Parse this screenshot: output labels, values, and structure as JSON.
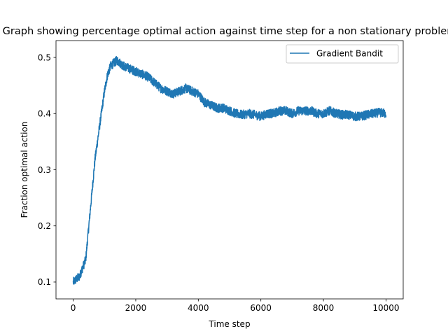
{
  "chart_data": {
    "type": "line",
    "title": "Graph showing percentage optimal action against time step for a non stationary problem",
    "xlabel": "Time step",
    "ylabel": "Fraction optimal action",
    "xlim": [
      -550,
      10550
    ],
    "ylim": [
      0.07,
      0.53
    ],
    "xticks": [
      0,
      2000,
      4000,
      6000,
      8000,
      10000
    ],
    "xtick_labels": [
      "0",
      "2000",
      "4000",
      "6000",
      "8000",
      "10000"
    ],
    "yticks": [
      0.1,
      0.2,
      0.3,
      0.4,
      0.5
    ],
    "ytick_labels": [
      "0.1",
      "0.2",
      "0.3",
      "0.4",
      "0.5"
    ],
    "grid": false,
    "legend_position": "upper right",
    "series": [
      {
        "name": "Gradient Bandit",
        "color": "#1f77b4",
        "noise": 0.008,
        "x": [
          0,
          200,
          400,
          500,
          600,
          700,
          800,
          900,
          1000,
          1100,
          1200,
          1300,
          1400,
          1500,
          1600,
          1800,
          2000,
          2200,
          2400,
          2600,
          2800,
          3000,
          3200,
          3400,
          3600,
          3800,
          4000,
          4200,
          4400,
          4600,
          4800,
          5000,
          5200,
          5400,
          5600,
          5800,
          6000,
          6200,
          6400,
          6600,
          6800,
          7000,
          7200,
          7400,
          7600,
          7800,
          8000,
          8200,
          8400,
          8600,
          8800,
          9000,
          9200,
          9400,
          9600,
          9800,
          10000
        ],
        "y": [
          0.1,
          0.11,
          0.14,
          0.2,
          0.26,
          0.32,
          0.36,
          0.4,
          0.44,
          0.47,
          0.485,
          0.49,
          0.495,
          0.49,
          0.485,
          0.48,
          0.475,
          0.47,
          0.465,
          0.455,
          0.445,
          0.44,
          0.435,
          0.44,
          0.445,
          0.44,
          0.435,
          0.42,
          0.415,
          0.41,
          0.41,
          0.405,
          0.4,
          0.398,
          0.4,
          0.398,
          0.395,
          0.4,
          0.4,
          0.405,
          0.405,
          0.4,
          0.405,
          0.405,
          0.405,
          0.4,
          0.4,
          0.405,
          0.4,
          0.398,
          0.398,
          0.395,
          0.395,
          0.398,
          0.4,
          0.402,
          0.4
        ]
      }
    ]
  }
}
